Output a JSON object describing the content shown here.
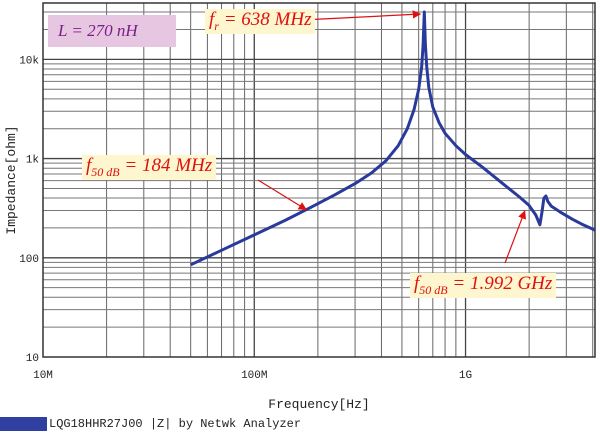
{
  "chart_data": {
    "type": "line",
    "title": "",
    "xlabel": "Frequency[Hz]",
    "ylabel": "Impedance[ohm]",
    "xscale": "log",
    "yscale": "log",
    "xlim": [
      10000000,
      4100000000
    ],
    "ylim": [
      10,
      37000
    ],
    "grid": true,
    "x_ticks": [
      {
        "v": 10000000,
        "label": "10M"
      },
      {
        "v": 100000000,
        "label": "100M"
      },
      {
        "v": 1000000000,
        "label": "1G"
      }
    ],
    "y_ticks": [
      {
        "v": 10,
        "label": "10"
      },
      {
        "v": 100,
        "label": "100"
      },
      {
        "v": 1000,
        "label": "1k"
      },
      {
        "v": 10000,
        "label": "10k"
      }
    ],
    "series": [
      {
        "name": "LQG18HHR27J00 |Z| by Netwk Analyzer",
        "color": "#2a3a9a",
        "x_MHz": [
          50,
          70,
          100,
          140,
          184,
          240,
          300,
          360,
          420,
          480,
          530,
          570,
          600,
          620,
          630,
          638,
          646,
          655,
          670,
          700,
          750,
          800,
          900,
          1000,
          1200,
          1500,
          1800,
          1992,
          2150,
          2250,
          2300,
          2350,
          2400,
          2450,
          2550,
          2800,
          3200,
          3600,
          4100
        ],
        "y_ohm": [
          85,
          119,
          170,
          238,
          320,
          430,
          560,
          720,
          950,
          1350,
          2000,
          3100,
          5000,
          8500,
          14000,
          30000,
          14000,
          8500,
          5200,
          3300,
          2300,
          1800,
          1350,
          1100,
          820,
          560,
          410,
          340,
          270,
          215,
          290,
          400,
          420,
          370,
          330,
          290,
          245,
          215,
          190
        ]
      }
    ],
    "legend_position": "bottom-left",
    "annotations": [
      {
        "id": "inductance",
        "text": "L = 270 nH"
      },
      {
        "id": "fr",
        "sym": "f",
        "sub": "r",
        "text": "= 638 MHz",
        "x_MHz": 638,
        "y_ohm": 30000
      },
      {
        "id": "f50_low",
        "sym": "f",
        "sub": "50 dB",
        "text": "= 184 MHz",
        "x_MHz": 184,
        "y_ohm": 320
      },
      {
        "id": "f50_high",
        "sym": "f",
        "sub": "50 dB",
        "text": "= 1.992 GHz",
        "x_MHz": 1992,
        "y_ohm": 340
      }
    ]
  }
}
